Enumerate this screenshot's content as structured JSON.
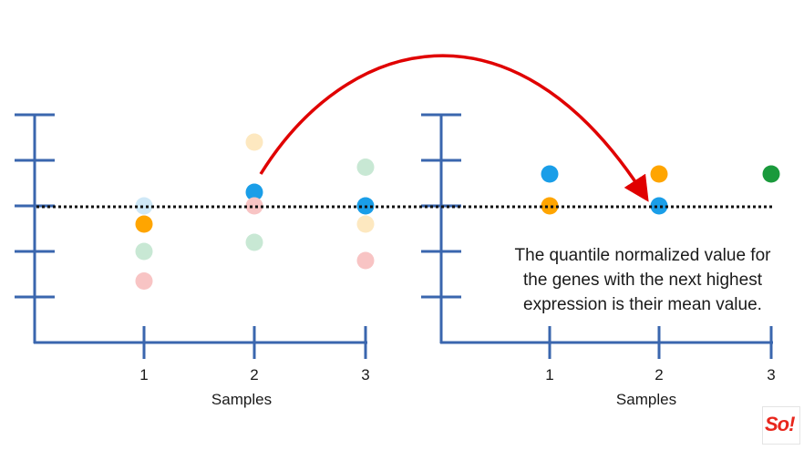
{
  "chart_data": [
    {
      "type": "scatter",
      "panel": "left",
      "xlabel": "Samples",
      "categories": [
        "1",
        "2",
        "3"
      ],
      "reference_line": "dotted-horizontal",
      "points": [
        {
          "sample": 1,
          "level": 3.0,
          "color": "#cfe8f7",
          "faded": true
        },
        {
          "sample": 1,
          "level": 2.6,
          "color": "#ffa500",
          "faded": false
        },
        {
          "sample": 1,
          "level": 2.0,
          "color": "#c8e8d4",
          "faded": true
        },
        {
          "sample": 1,
          "level": 1.35,
          "color": "#f8c4c4",
          "faded": true
        },
        {
          "sample": 2,
          "level": 4.4,
          "color": "#fde8c0",
          "faded": true
        },
        {
          "sample": 2,
          "level": 3.3,
          "color": "#1a9ee8",
          "faded": false
        },
        {
          "sample": 2,
          "level": 3.0,
          "color": "#f8c4c4",
          "faded": true
        },
        {
          "sample": 2,
          "level": 2.2,
          "color": "#c8e8d4",
          "faded": true
        },
        {
          "sample": 3,
          "level": 3.85,
          "color": "#c8e8d4",
          "faded": true
        },
        {
          "sample": 3,
          "level": 3.0,
          "color": "#1a9ee8",
          "faded": false
        },
        {
          "sample": 3,
          "level": 2.6,
          "color": "#fde8c0",
          "faded": true
        },
        {
          "sample": 3,
          "level": 1.8,
          "color": "#f8c4c4",
          "faded": true
        }
      ]
    },
    {
      "type": "scatter",
      "panel": "right",
      "xlabel": "Samples",
      "categories": [
        "1",
        "2",
        "3"
      ],
      "reference_line": "dotted-horizontal",
      "points": [
        {
          "sample": 1,
          "level": 3.7,
          "color": "#1a9ee8"
        },
        {
          "sample": 1,
          "level": 3.0,
          "color": "#ffa500"
        },
        {
          "sample": 2,
          "level": 3.7,
          "color": "#ffa500"
        },
        {
          "sample": 2,
          "level": 3.0,
          "color": "#1a9ee8"
        },
        {
          "sample": 3,
          "level": 3.7,
          "color": "#1a9a3c"
        }
      ]
    }
  ],
  "caption": {
    "line1": "The quantile normalized value for",
    "line2": "the genes with the next highest",
    "line3": "expression is their mean value."
  },
  "colors": {
    "axis": "#3a66ae",
    "arrow": "#e00000",
    "dotted_line": "#111111"
  },
  "logo": {
    "text": "So!"
  }
}
